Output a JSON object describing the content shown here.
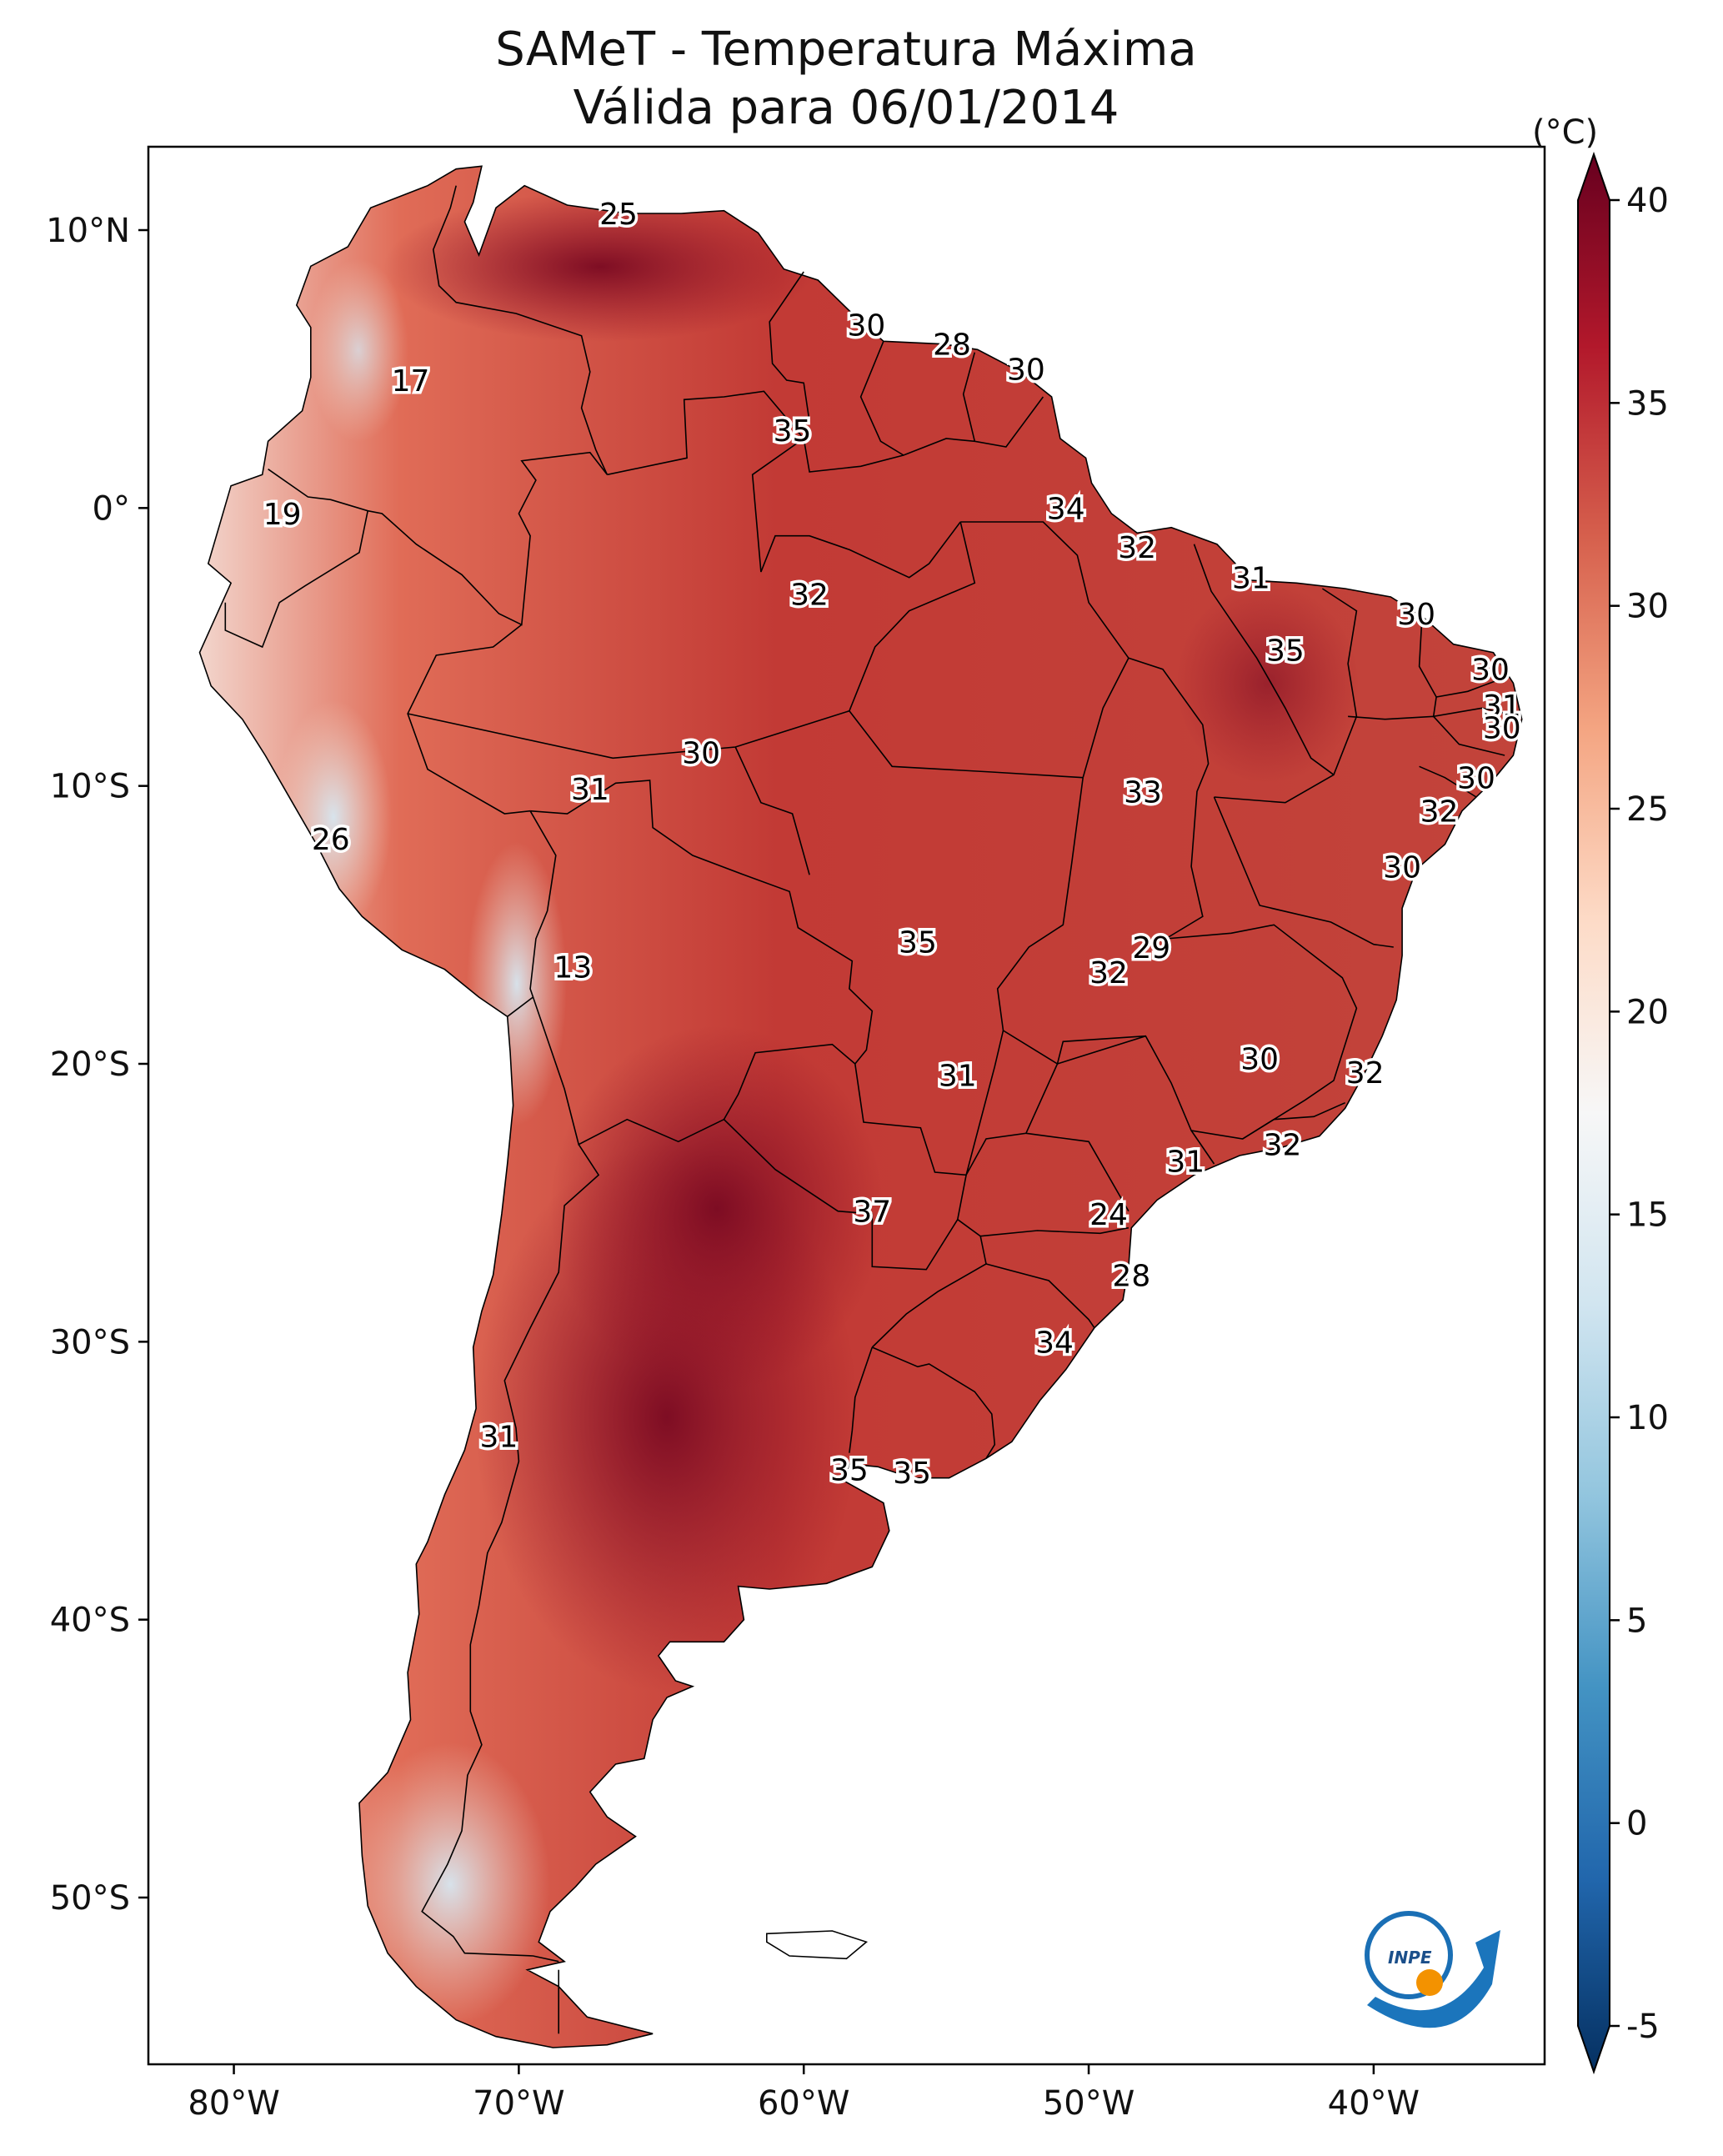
{
  "title": {
    "line1": "SAMeT - Temperatura Máxima",
    "line2": "Válida para 06/01/2014"
  },
  "axes": {
    "x_ticks": [
      {
        "lon": -80,
        "label": "80°W"
      },
      {
        "lon": -70,
        "label": "70°W"
      },
      {
        "lon": -60,
        "label": "60°W"
      },
      {
        "lon": -50,
        "label": "50°W"
      },
      {
        "lon": -40,
        "label": "40°W"
      }
    ],
    "y_ticks": [
      {
        "lat": 10,
        "label": "10°N"
      },
      {
        "lat": 0,
        "label": "0°"
      },
      {
        "lat": -10,
        "label": "10°S"
      },
      {
        "lat": -20,
        "label": "20°S"
      },
      {
        "lat": -30,
        "label": "30°S"
      },
      {
        "lat": -40,
        "label": "40°S"
      },
      {
        "lat": -50,
        "label": "50°S"
      }
    ],
    "lon_range": [
      -83,
      -34
    ],
    "lat_range": [
      -56,
      13
    ]
  },
  "colorbar": {
    "unit": "(°C)",
    "range": [
      -5,
      40
    ],
    "ticks": [
      {
        "value": 40,
        "label": "40"
      },
      {
        "value": 35,
        "label": "35"
      },
      {
        "value": 30,
        "label": "30"
      },
      {
        "value": 25,
        "label": "25"
      },
      {
        "value": 20,
        "label": "20"
      },
      {
        "value": 15,
        "label": "15"
      },
      {
        "value": 10,
        "label": "10"
      },
      {
        "value": 5,
        "label": "5"
      },
      {
        "value": 0,
        "label": "0"
      },
      {
        "value": -5,
        "label": "-5"
      }
    ],
    "colors": [
      "#053061",
      "#2166ac",
      "#4393c3",
      "#92c5de",
      "#d1e5f0",
      "#f7f7f7",
      "#fddbc7",
      "#f4a582",
      "#d6604d",
      "#b2182b",
      "#67001f"
    ]
  },
  "logo": {
    "text": "INPE"
  },
  "station_labels": [
    {
      "lon": -66.5,
      "lat": 10.6,
      "value": "25"
    },
    {
      "lon": -73.8,
      "lat": 4.6,
      "value": "17"
    },
    {
      "lon": -57.8,
      "lat": 6.6,
      "value": "30"
    },
    {
      "lon": -54.8,
      "lat": 5.9,
      "value": "28"
    },
    {
      "lon": -52.2,
      "lat": 5.0,
      "value": "30"
    },
    {
      "lon": -60.4,
      "lat": 2.8,
      "value": "35"
    },
    {
      "lon": -78.3,
      "lat": -0.2,
      "value": "19"
    },
    {
      "lon": -50.8,
      "lat": 0.0,
      "value": "34"
    },
    {
      "lon": -48.3,
      "lat": -1.4,
      "value": "32"
    },
    {
      "lon": -59.8,
      "lat": -3.1,
      "value": "32"
    },
    {
      "lon": -44.3,
      "lat": -2.5,
      "value": "31"
    },
    {
      "lon": -38.5,
      "lat": -3.8,
      "value": "30"
    },
    {
      "lon": -43.1,
      "lat": -5.1,
      "value": "35"
    },
    {
      "lon": -35.9,
      "lat": -5.8,
      "value": "30"
    },
    {
      "lon": -35.5,
      "lat": -7.1,
      "value": "31"
    },
    {
      "lon": -35.5,
      "lat": -7.9,
      "value": "30"
    },
    {
      "lon": -63.6,
      "lat": -8.8,
      "value": "30"
    },
    {
      "lon": -67.5,
      "lat": -10.1,
      "value": "31"
    },
    {
      "lon": -48.1,
      "lat": -10.2,
      "value": "33"
    },
    {
      "lon": -36.4,
      "lat": -9.7,
      "value": "30"
    },
    {
      "lon": -37.7,
      "lat": -10.9,
      "value": "32"
    },
    {
      "lon": -76.6,
      "lat": -11.9,
      "value": "26"
    },
    {
      "lon": -39.0,
      "lat": -12.9,
      "value": "30"
    },
    {
      "lon": -68.1,
      "lat": -16.5,
      "value": "13"
    },
    {
      "lon": -56.0,
      "lat": -15.6,
      "value": "35"
    },
    {
      "lon": -47.8,
      "lat": -15.8,
      "value": "29"
    },
    {
      "lon": -49.3,
      "lat": -16.7,
      "value": "32"
    },
    {
      "lon": -44.0,
      "lat": -19.8,
      "value": "30"
    },
    {
      "lon": -40.3,
      "lat": -20.3,
      "value": "32"
    },
    {
      "lon": -54.6,
      "lat": -20.4,
      "value": "31"
    },
    {
      "lon": -43.2,
      "lat": -22.9,
      "value": "32"
    },
    {
      "lon": -46.6,
      "lat": -23.5,
      "value": "31"
    },
    {
      "lon": -57.6,
      "lat": -25.3,
      "value": "37"
    },
    {
      "lon": -49.3,
      "lat": -25.4,
      "value": "24"
    },
    {
      "lon": -48.5,
      "lat": -27.6,
      "value": "28"
    },
    {
      "lon": -51.2,
      "lat": -30.0,
      "value": "34"
    },
    {
      "lon": -70.7,
      "lat": -33.4,
      "value": "31"
    },
    {
      "lon": -58.4,
      "lat": -34.6,
      "value": "35"
    },
    {
      "lon": -56.2,
      "lat": -34.7,
      "value": "35"
    }
  ]
}
